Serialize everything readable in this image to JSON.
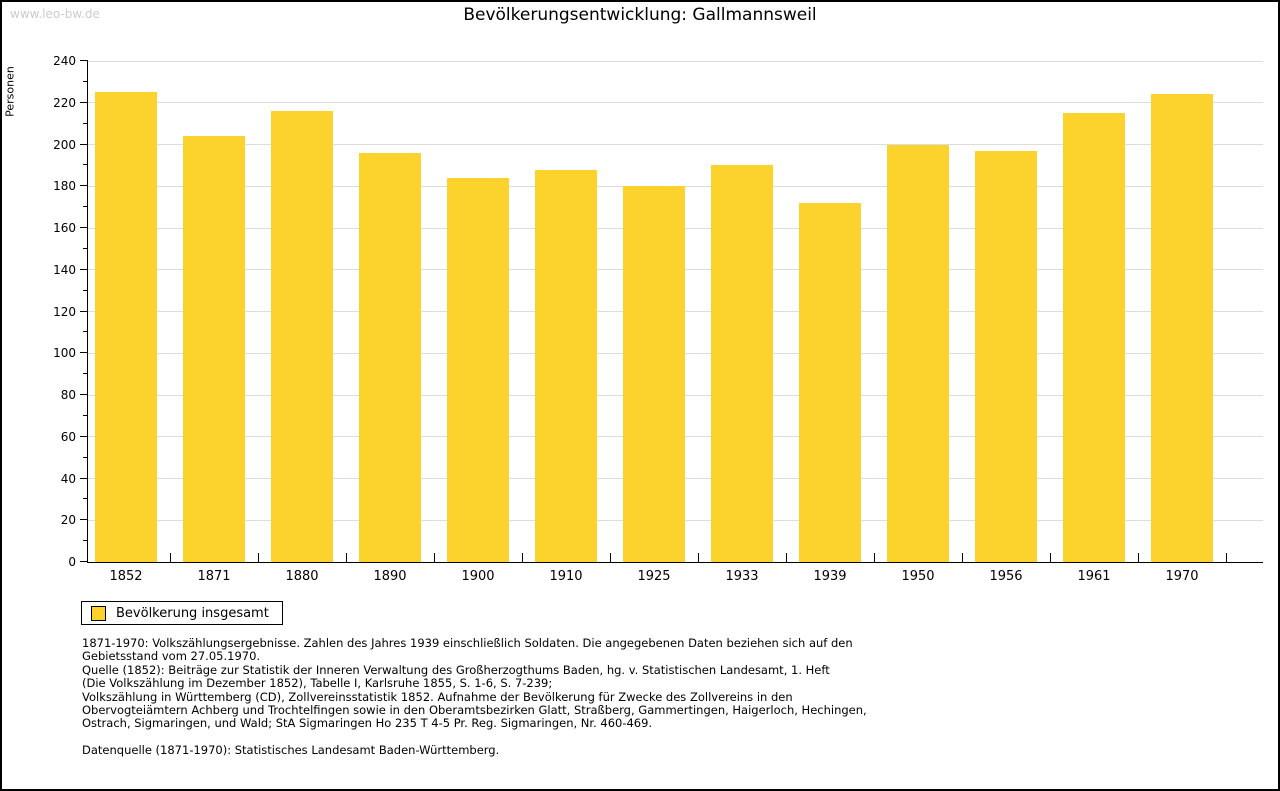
{
  "page": {
    "watermark": "www.leo-bw.de",
    "title": "Bevölkerungsentwicklung: Gallmannsweil"
  },
  "chart_data": {
    "type": "bar",
    "title": "Bevölkerungsentwicklung: Gallmannsweil",
    "xlabel": "",
    "ylabel": "Personen",
    "categories": [
      "1852",
      "1871",
      "1880",
      "1890",
      "1900",
      "1910",
      "1925",
      "1933",
      "1939",
      "1950",
      "1956",
      "1961",
      "1970"
    ],
    "series": [
      {
        "name": "Bevölkerung insgesamt",
        "values": [
          225,
          204,
          216,
          196,
          184,
          188,
          180,
          190,
          172,
          200,
          197,
          215,
          224
        ]
      }
    ],
    "ylim": [
      0,
      240
    ],
    "ytick_major_step": 20,
    "ytick_minor_step": 10,
    "grid": "horizontal-major",
    "legend_position": "bottom-left"
  },
  "legend": {
    "label": "Bevölkerung insgesamt"
  },
  "colors": {
    "bar_fill": "#FCD32D",
    "gridline": "#dcdcdc",
    "watermark": "#cccccc",
    "axis": "#000000"
  },
  "notes": {
    "lines": [
      "1871-1970: Volkszählungsergebnisse. Zahlen des Jahres 1939 einschließlich Soldaten. Die angegebenen Daten beziehen sich auf den",
      "Gebietsstand vom 27.05.1970.",
      "Quelle (1852): Beiträge zur Statistik der Inneren Verwaltung des Großherzogthums Baden, hg. v. Statistischen Landesamt, 1. Heft",
      "(Die Volkszählung im Dezember 1852), Tabelle I, Karlsruhe 1855, S. 1-6, S. 7-239;",
      "Volkszählung in Württemberg (CD), Zollvereinsstatistik 1852. Aufnahme der Bevölkerung für Zwecke des Zollvereins in den",
      "Obervogteiämtern Achberg und Trochtelfingen sowie in den Oberamtsbezirken Glatt, Straßberg, Gammertingen, Haigerloch, Hechingen,",
      "Ostrach, Sigmaringen, und Wald; StA Sigmaringen Ho 235 T 4-5 Pr. Reg. Sigmaringen, Nr. 460-469.",
      "",
      "Datenquelle (1871-1970): Statistisches Landesamt Baden-Württemberg."
    ]
  }
}
